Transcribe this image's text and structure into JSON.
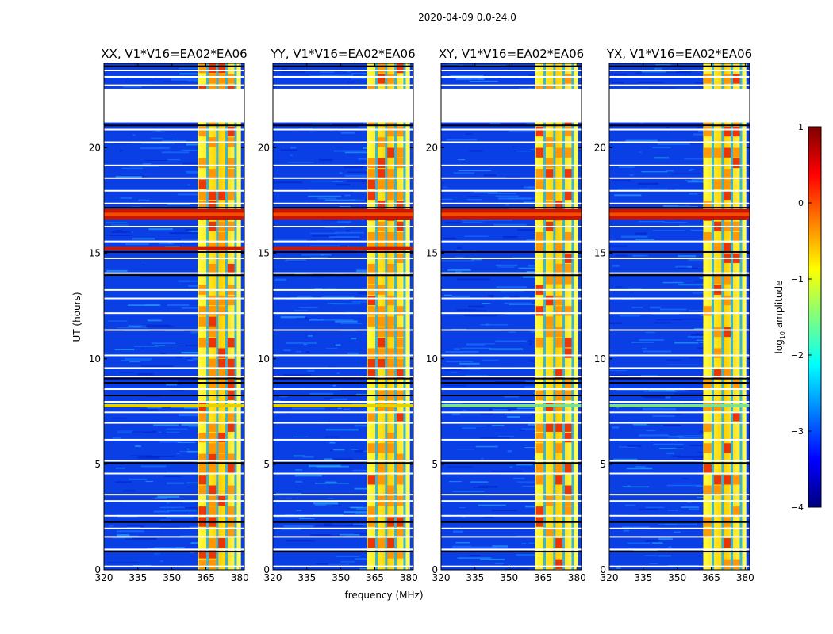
{
  "figure": {
    "suptitle": "2020-04-09 0.0-24.0"
  },
  "chart_data": {
    "type": "heatmap",
    "title": "2020-04-09 0.0-24.0",
    "xlabel": "frequency (MHz)",
    "ylabel": "UT (hours)",
    "xlim": [
      320,
      382
    ],
    "ylim": [
      0,
      24
    ],
    "xticks": [
      320,
      335,
      350,
      365,
      380
    ],
    "xtick_labels": [
      "320",
      "335",
      "350",
      "365",
      "380"
    ],
    "yticks": [
      0,
      5,
      10,
      15,
      20
    ],
    "ytick_labels": [
      "0",
      "5",
      "10",
      "15",
      "20"
    ],
    "panels": [
      {
        "title": "XX, V1*V16=EA02*EA06",
        "pol": "XX"
      },
      {
        "title": "YY, V1*V16=EA02*EA06",
        "pol": "YY"
      },
      {
        "title": "XY, V1*V16=EA02*EA06",
        "pol": "XY"
      },
      {
        "title": "YX, V1*V16=EA02*EA06",
        "pol": "YX"
      }
    ],
    "data_gap_hours": [
      21.2,
      22.8
    ],
    "rfi_band_mhz": [
      361.5,
      380.5
    ],
    "strong_rfi_hours": [
      16.6,
      17.1
    ],
    "colorbar": {
      "label": "log10 amplitude",
      "label_prefix": "log",
      "label_sub": "10",
      "label_suffix": " amplitude",
      "vmin": -4,
      "vmax": 1,
      "ticks": [
        1,
        0,
        -1,
        -2,
        -3,
        -4
      ],
      "tick_labels": [
        "1",
        "0",
        "−1",
        "−2",
        "−3",
        "−4"
      ],
      "colormap": "jet",
      "jet_stops": [
        "#00007f",
        "#0000ff",
        "#007fff",
        "#00ffff",
        "#7fff7f",
        "#ffff00",
        "#ff7f00",
        "#ff0000",
        "#7f0000"
      ]
    }
  }
}
